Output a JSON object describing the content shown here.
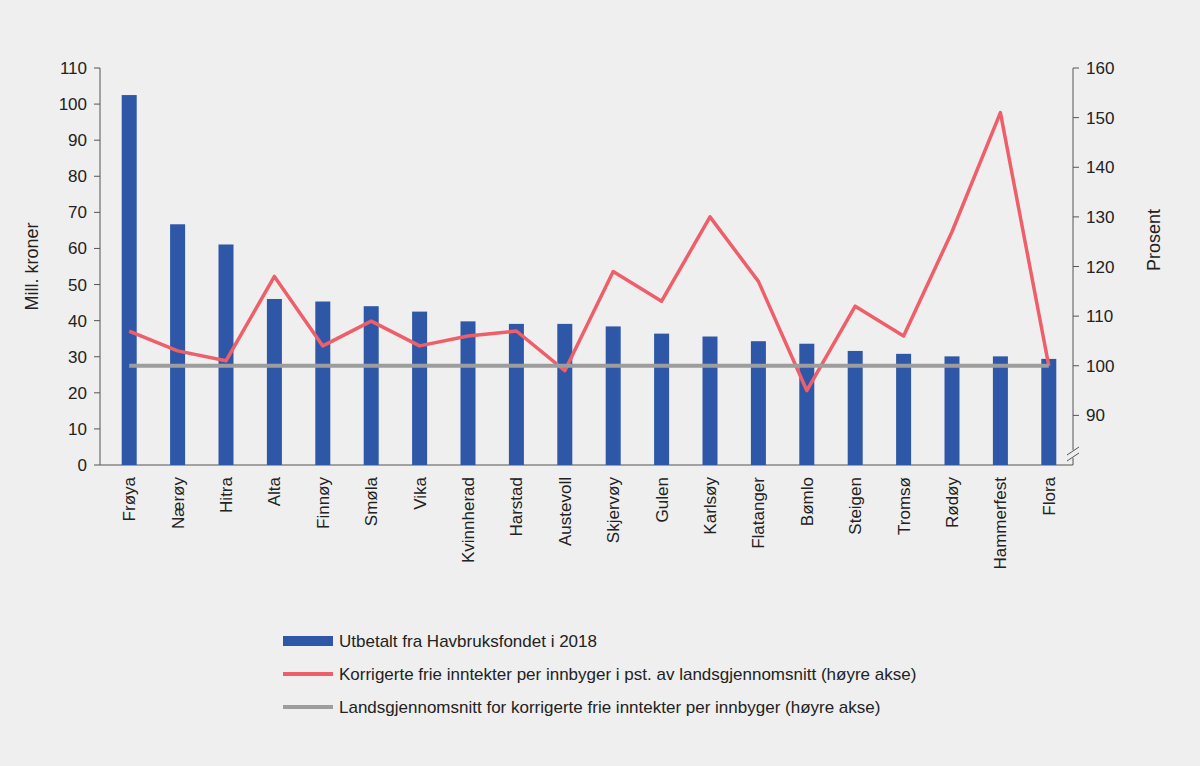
{
  "chart_data": {
    "type": "bar",
    "categories": [
      "Frøya",
      "Nærøy",
      "Hitra",
      "Alta",
      "Finnøy",
      "Smøla",
      "Vika",
      "Kvinnherad",
      "Harstad",
      "Austevoll",
      "Skjervøy",
      "Gulen",
      "Karlsøy",
      "Flatanger",
      "Bømlo",
      "Steigen",
      "Tromsø",
      "Rødøy",
      "Hammerfest",
      "Flora"
    ],
    "series": [
      {
        "name": "Utbetalt fra Havbruksfondet i 2018",
        "type": "bar",
        "color": "#2f57a7",
        "values": [
          102.5,
          66.7,
          61.1,
          46,
          45.3,
          44,
          42.5,
          39.8,
          39.1,
          39.1,
          38.4,
          36.4,
          35.6,
          34.3,
          33.6,
          31.6,
          30.8,
          30.1,
          30.1,
          29.4
        ]
      },
      {
        "name": "Korrigerte frie inntekter per innbyger i pst. av landsgjennomsnitt (høyre akse)",
        "type": "line",
        "axis": "y2",
        "color": "#ee5f69",
        "values": [
          107,
          103,
          101,
          118,
          104,
          109,
          104,
          106,
          107,
          99,
          119,
          113,
          130,
          117,
          95,
          112,
          106,
          127,
          151,
          100
        ]
      },
      {
        "name": "Landsgjennomsnitt for korrigerte frie inntekter per innbyger (høyre akse)",
        "type": "line",
        "axis": "y2",
        "color": "#9d9d9d",
        "values": [
          100,
          100,
          100,
          100,
          100,
          100,
          100,
          100,
          100,
          100,
          100,
          100,
          100,
          100,
          100,
          100,
          100,
          100,
          100,
          100
        ]
      }
    ],
    "ylabel": "Mill. kroner",
    "y2label": "Prosent",
    "ylim": [
      0,
      110
    ],
    "yticks": [
      0,
      10,
      20,
      30,
      40,
      50,
      60,
      70,
      80,
      90,
      100,
      110
    ],
    "y2lim": [
      80,
      160
    ],
    "y2ticks": [
      90,
      100,
      110,
      120,
      130,
      140,
      150,
      160
    ],
    "legend": "bottom"
  }
}
